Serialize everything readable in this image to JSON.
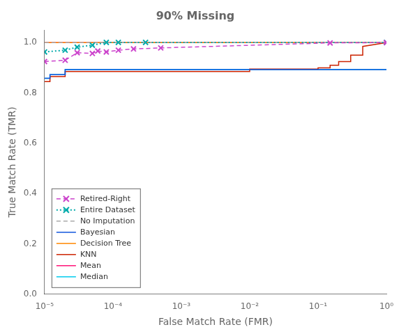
{
  "chart_data": {
    "type": "line",
    "title": "90% Missing",
    "x_label": "False Match Rate (FMR)",
    "y_label": "True Match Rate (TMR)",
    "log": "x",
    "grid": false,
    "legend": "lower left",
    "xlim": [
      1e-05,
      1.0
    ],
    "ylim": [
      0.0,
      1.05
    ],
    "xticks": [
      {
        "value": 1e-05,
        "label": "10⁻⁵"
      },
      {
        "value": 0.0001,
        "label": "10⁻⁴"
      },
      {
        "value": 0.001,
        "label": "10⁻³"
      },
      {
        "value": 0.01,
        "label": "10⁻²"
      },
      {
        "value": 0.1,
        "label": "10⁻¹"
      },
      {
        "value": 1,
        "label": "10⁰"
      }
    ],
    "yticks": [
      {
        "value": 0,
        "label": "0.0"
      },
      {
        "value": 0.2,
        "label": "0.2"
      },
      {
        "value": 0.4,
        "label": "0.4"
      },
      {
        "value": 0.6,
        "label": "0.6"
      },
      {
        "value": 0.8,
        "label": "0.8"
      },
      {
        "value": 1,
        "label": "1.0"
      }
    ],
    "series": [
      {
        "name": "Retired-Right",
        "color": "#CC44CC",
        "line_style": "dashed",
        "marker": "x",
        "x": [
          1e-05,
          2e-05,
          3e-05,
          5e-05,
          6e-05,
          8e-05,
          0.00012,
          0.0002,
          0.0005,
          0.15,
          1.0
        ],
        "values": [
          0.925,
          0.93,
          0.96,
          0.957,
          0.967,
          0.963,
          0.97,
          0.975,
          0.979,
          0.999,
          1.0
        ]
      },
      {
        "name": "Entire Dataset",
        "color": "#00AAAA",
        "line_style": "dotted",
        "marker": "x",
        "x": [
          1e-05,
          2e-05,
          3e-05,
          5e-05,
          8e-05,
          0.00012,
          0.0003,
          1.0
        ],
        "values": [
          0.963,
          0.97,
          0.982,
          0.99,
          1.001,
          1.001,
          1.001,
          1.001
        ]
      },
      {
        "name": "No Imputation",
        "color": "#AAAAAA",
        "line_style": "dashed",
        "x": [
          1e-05,
          1.0
        ],
        "values": [
          1.0,
          1.0
        ]
      },
      {
        "name": "Bayesian",
        "color": "#1155DD",
        "line_style": "solid",
        "x": [
          1e-05,
          1.2e-05,
          1.2e-05,
          2e-05,
          2e-05,
          1.0
        ],
        "values": [
          0.858,
          0.858,
          0.873,
          0.873,
          0.893,
          0.893
        ]
      },
      {
        "name": "Decision Tree",
        "color": "#FF8800",
        "line_style": "solid",
        "x": [
          1e-05,
          1.0
        ],
        "values": [
          1.0,
          1.0
        ]
      },
      {
        "name": "KNN",
        "color": "#CC2200",
        "line_style": "solid",
        "x": [
          1e-05,
          1.2e-05,
          1.2e-05,
          2e-05,
          2e-05,
          0.0005,
          0.0005,
          0.005,
          0.005,
          0.01,
          0.01,
          0.05,
          0.05,
          0.1,
          0.1,
          0.15,
          0.15,
          0.2,
          0.2,
          0.3,
          0.3,
          0.45,
          0.45,
          1.0
        ],
        "values": [
          0.845,
          0.845,
          0.865,
          0.865,
          0.885,
          0.885,
          0.885,
          0.885,
          0.885,
          0.885,
          0.895,
          0.895,
          0.895,
          0.895,
          0.9,
          0.9,
          0.91,
          0.91,
          0.925,
          0.925,
          0.95,
          0.95,
          0.985,
          1.0
        ]
      },
      {
        "name": "Mean",
        "color": "#FF1177",
        "line_style": "solid",
        "x": [
          1e-05,
          1.0
        ],
        "values": [
          1.0,
          1.0
        ]
      },
      {
        "name": "Median",
        "color": "#00CCEE",
        "line_style": "solid",
        "x": [
          1e-05,
          1.2e-05,
          1.2e-05,
          2e-05,
          2e-05,
          1.0
        ],
        "values": [
          0.858,
          0.858,
          0.873,
          0.873,
          0.893,
          0.893
        ]
      }
    ]
  }
}
